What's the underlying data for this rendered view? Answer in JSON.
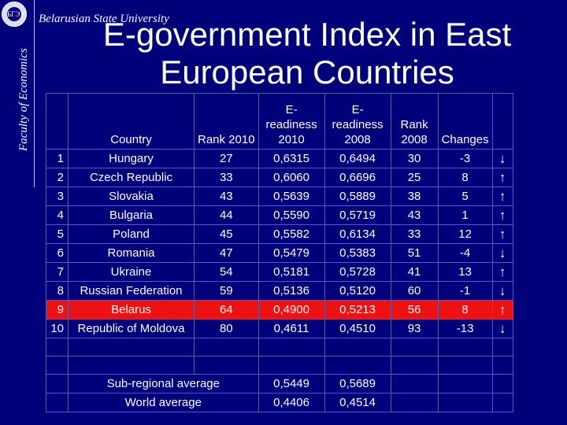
{
  "header": {
    "university": "Belarusian State University",
    "faculty": "Faculty of Economics",
    "title_line1": "E-government Index in East",
    "title_line2": "European Countries",
    "logo_text": "БГЭУ"
  },
  "table": {
    "headers": {
      "num": "",
      "country": "Country",
      "rank2010": "Rank 2010",
      "ereadiness2010": "E-\nreadiness\n2010",
      "ereadiness2008": "E-\nreadiness\n2008",
      "rank2008": "Rank\n2008",
      "changes": "Changes",
      "arrow": ""
    },
    "rows": [
      {
        "num": "1",
        "country": "Hungary",
        "rank2010": "27",
        "e2010": "0,6315",
        "e2008": "0,6494",
        "rank2008": "30",
        "change": "-3",
        "arrow": "↓"
      },
      {
        "num": "2",
        "country": "Czech Republic",
        "rank2010": "33",
        "e2010": "0,6060",
        "e2008": "0,6696",
        "rank2008": "25",
        "change": "8",
        "arrow": "↑"
      },
      {
        "num": "3",
        "country": "Slovakia",
        "rank2010": "43",
        "e2010": "0,5639",
        "e2008": "0,5889",
        "rank2008": "38",
        "change": "5",
        "arrow": "↑"
      },
      {
        "num": "4",
        "country": "Bulgaria",
        "rank2010": "44",
        "e2010": "0,5590",
        "e2008": "0,5719",
        "rank2008": "43",
        "change": "1",
        "arrow": "↑"
      },
      {
        "num": "5",
        "country": "Poland",
        "rank2010": "45",
        "e2010": "0,5582",
        "e2008": "0,6134",
        "rank2008": "33",
        "change": "12",
        "arrow": "↑"
      },
      {
        "num": "6",
        "country": "Romania",
        "rank2010": "47",
        "e2010": "0,5479",
        "e2008": "0,5383",
        "rank2008": "51",
        "change": "-4",
        "arrow": "↓"
      },
      {
        "num": "7",
        "country": "Ukraine",
        "rank2010": "54",
        "e2010": "0,5181",
        "e2008": "0,5728",
        "rank2008": "41",
        "change": "13",
        "arrow": "↑"
      },
      {
        "num": "8",
        "country": "Russian Federation",
        "rank2010": "59",
        "e2010": "0,5136",
        "e2008": "0,5120",
        "rank2008": "60",
        "change": "-1",
        "arrow": "↓"
      },
      {
        "num": "9",
        "country": "Belarus",
        "rank2010": "64",
        "e2010": "0,4900",
        "e2008": "0,5213",
        "rank2008": "56",
        "change": "8",
        "arrow": "↑",
        "highlight": true
      },
      {
        "num": "10",
        "country": "Republic of Moldova",
        "rank2010": "80",
        "e2010": "0,4611",
        "e2008": "0,4510",
        "rank2008": "93",
        "change": "-13",
        "arrow": "↓"
      }
    ],
    "averages": [
      {
        "label": "Sub-regional average",
        "e2010": "0,5449",
        "e2008": "0,5689"
      },
      {
        "label": "World average",
        "e2010": "0,4406",
        "e2008": "0,4514"
      }
    ]
  },
  "colors": {
    "background": "#00007a",
    "highlight": "#ee1111",
    "text": "#ffffff"
  }
}
